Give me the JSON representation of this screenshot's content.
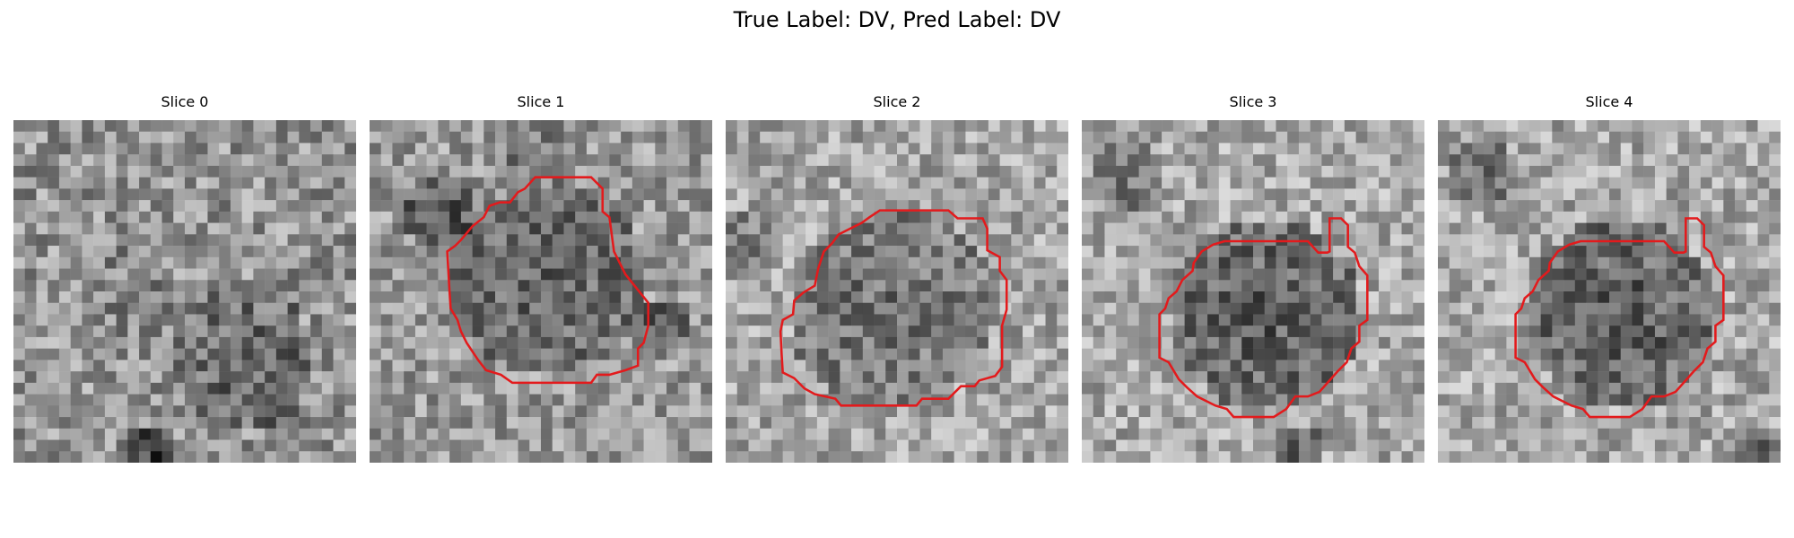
{
  "figure": {
    "title": "True Label: DV, Pred Label: DV"
  },
  "slices": [
    {
      "title": "Slice 0",
      "has_contour": false,
      "contour_color": "#e31a1c"
    },
    {
      "title": "Slice 1",
      "has_contour": true,
      "contour_color": "#e31a1c"
    },
    {
      "title": "Slice 2",
      "has_contour": true,
      "contour_color": "#e31a1c"
    },
    {
      "title": "Slice 3",
      "has_contour": true,
      "contour_color": "#e31a1c"
    },
    {
      "title": "Slice 4",
      "has_contour": true,
      "contour_color": "#e31a1c"
    }
  ],
  "colormap": "gray"
}
